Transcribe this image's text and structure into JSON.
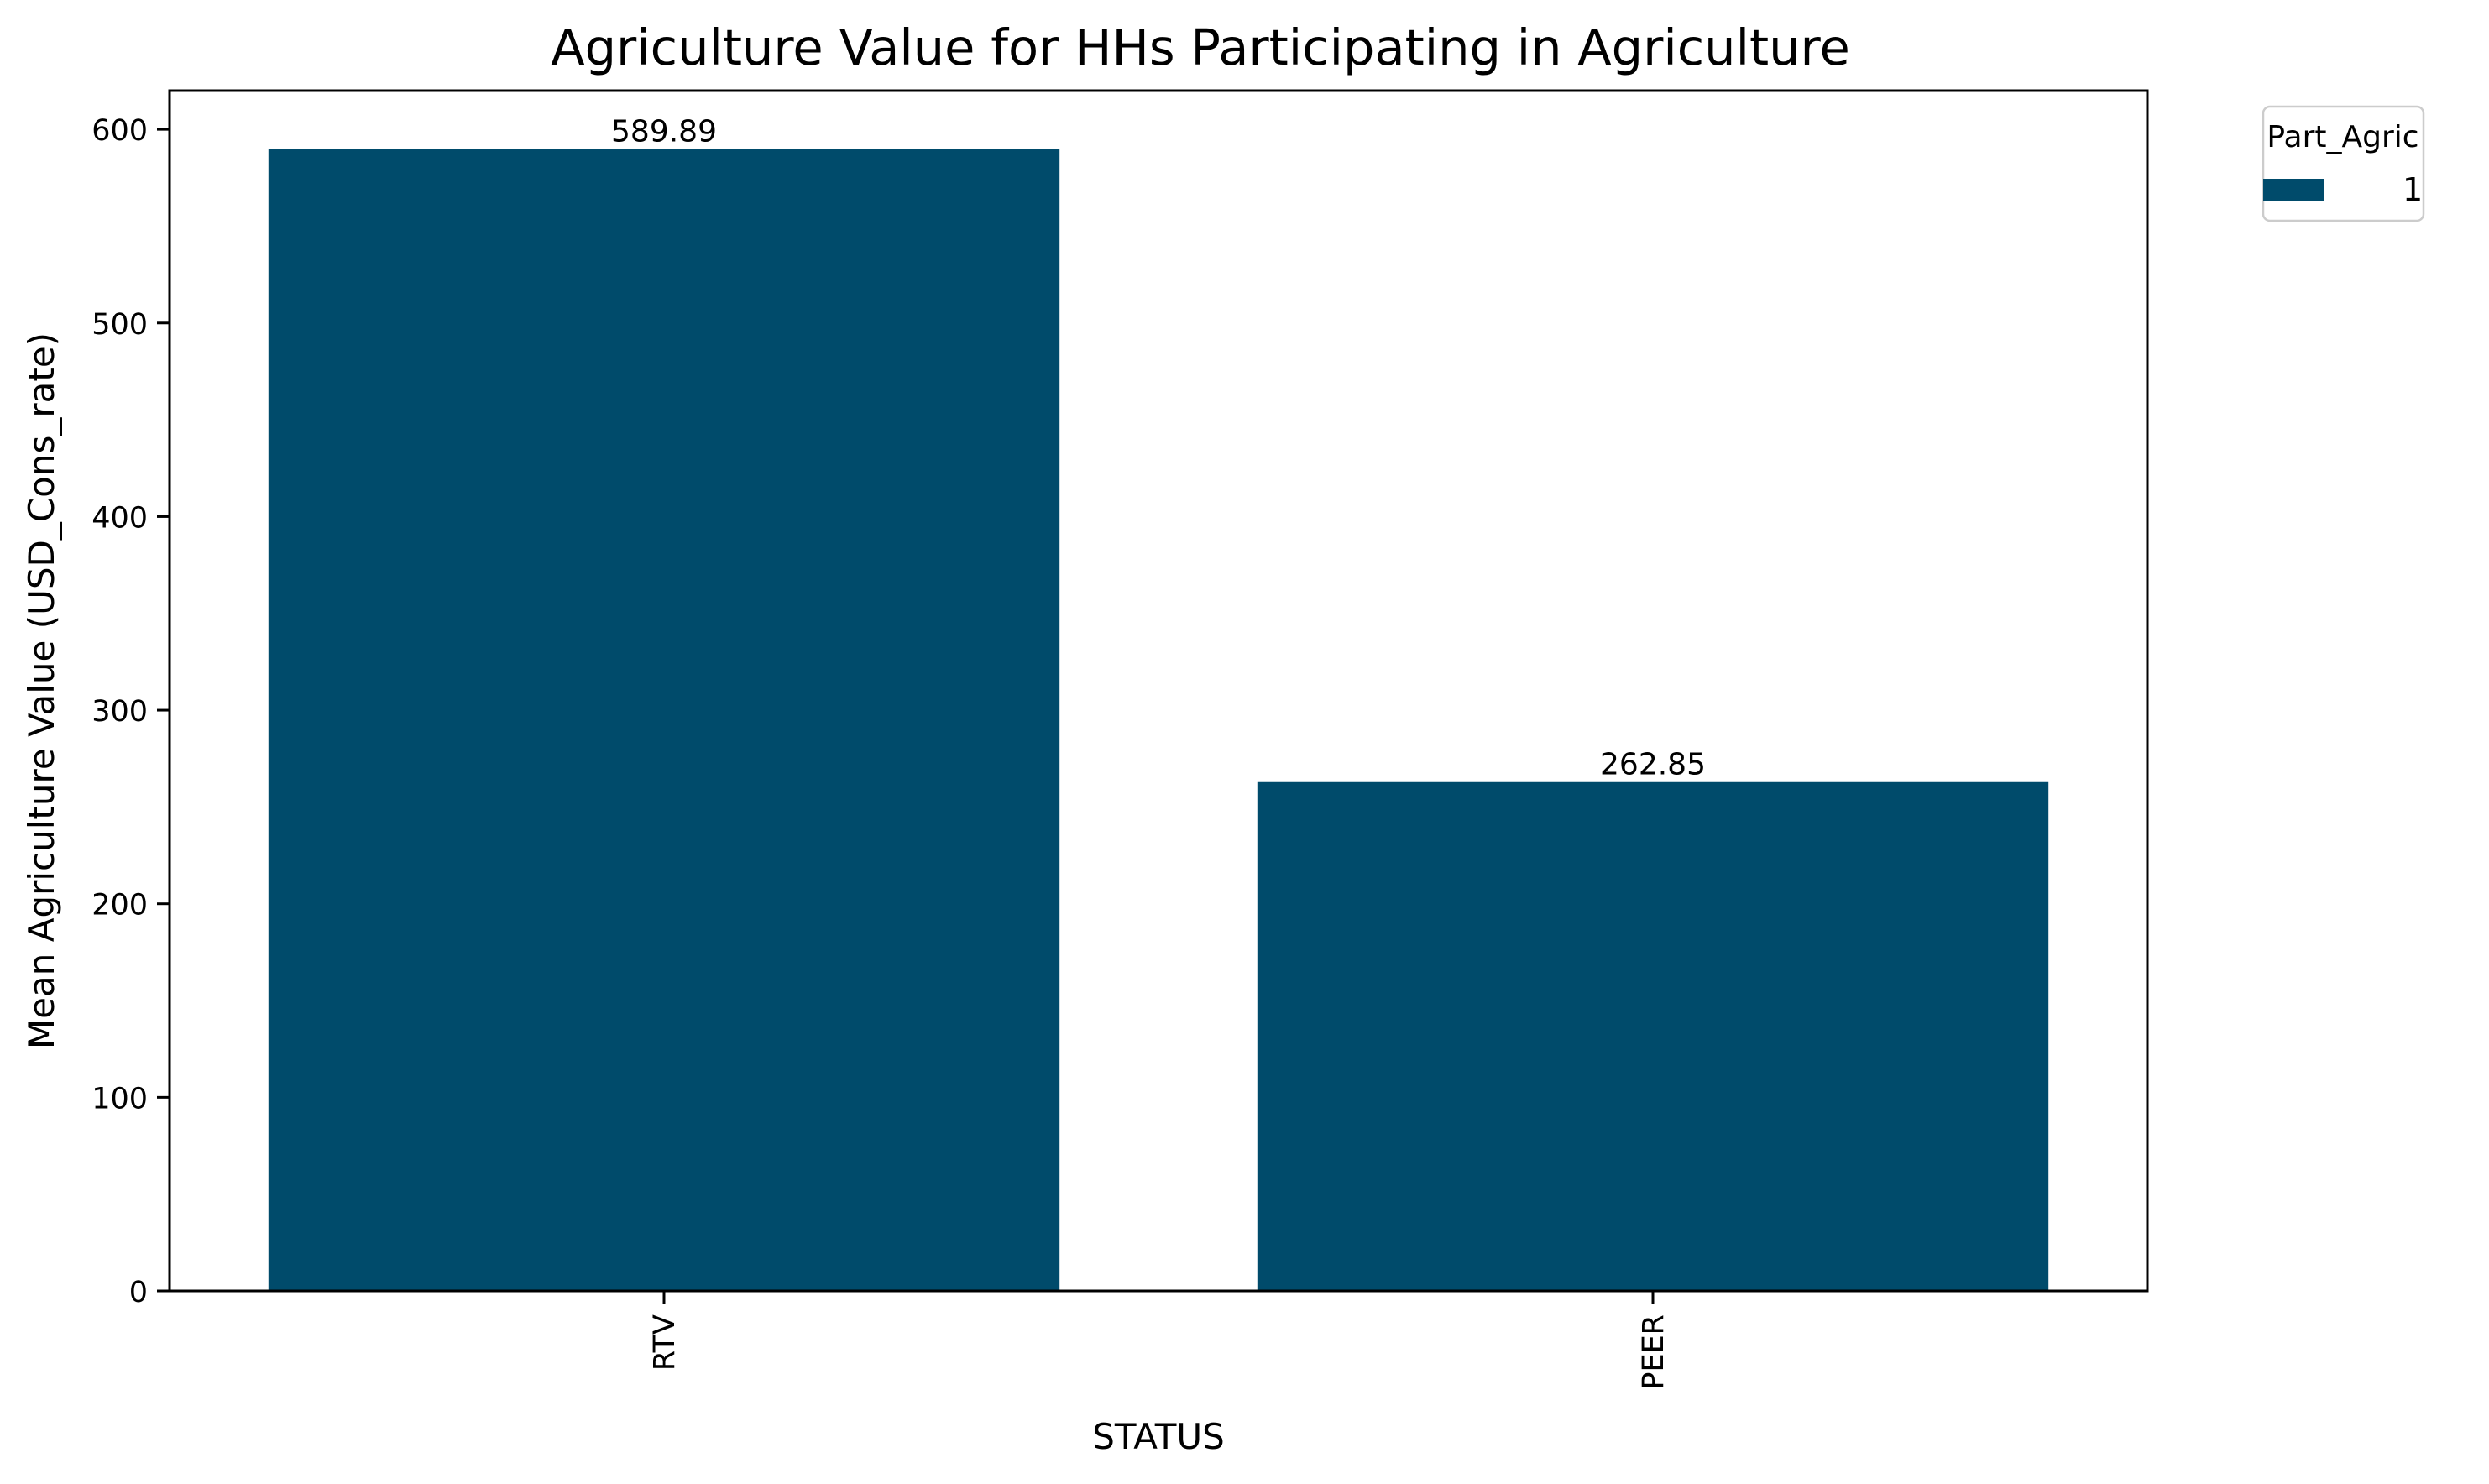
{
  "chart_data": {
    "type": "bar",
    "title": "Agriculture Value for HHs Participating in Agriculture",
    "xlabel": "STATUS",
    "ylabel": "Mean Agriculture Value (USD_Cons_rate)",
    "categories": [
      "RTV",
      "PEER"
    ],
    "series": [
      {
        "name": "1",
        "values": [
          589.89,
          262.85
        ],
        "color": "#004b6b"
      }
    ],
    "data_labels": [
      "589.89",
      "262.85"
    ],
    "ylim": [
      0,
      620
    ],
    "yticks": [
      0,
      100,
      200,
      300,
      400,
      500,
      600
    ],
    "grid": false,
    "legend": {
      "title": "Part_Agric",
      "placement": "outside upper right"
    }
  }
}
